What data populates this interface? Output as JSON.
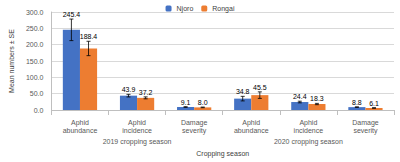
{
  "chart_data": {
    "type": "bar",
    "x_label": "Cropping season",
    "y_label": "Mean numbers ± SE",
    "categories": [
      "Aphid abundance",
      "Aphid incidence",
      "Damage severity",
      "Aphid abundance",
      "Aphid incidence",
      "Damage severity"
    ],
    "category_groups": [
      {
        "label": "2019 cropping season",
        "span": 3
      },
      {
        "label": "2020 cropping season",
        "span": 3
      }
    ],
    "series": [
      {
        "name": "Njoro",
        "color": "#4472c4",
        "values": [
          245.4,
          43.9,
          9.1,
          34.8,
          24.4,
          8.8
        ],
        "value_labels": [
          "245.4",
          "43.9",
          "9.1",
          "34.8",
          "24.4",
          "8.8"
        ],
        "errors": [
          33,
          4,
          1,
          7,
          2.5,
          1
        ]
      },
      {
        "name": "Rongai",
        "color": "#ed7d31",
        "values": [
          188.4,
          37.2,
          8.0,
          45.5,
          18.3,
          6.1
        ],
        "value_labels": [
          "188.4",
          "37.2",
          "8.0",
          "45.5",
          "18.3",
          "6.1"
        ],
        "errors": [
          22,
          3,
          1,
          10,
          2,
          1
        ]
      }
    ],
    "ylim": [
      0,
      300
    ],
    "yticks": [
      {
        "value": 0,
        "label": "0.0"
      },
      {
        "value": 50,
        "label": "50.0"
      },
      {
        "value": 100,
        "label": "100.0"
      },
      {
        "value": 150,
        "label": "150.0"
      },
      {
        "value": 200,
        "label": "200.0"
      },
      {
        "value": 250,
        "label": "250.0"
      },
      {
        "value": 300,
        "label": "300.0"
      }
    ],
    "grid": true,
    "legend": "top",
    "data_labels": true
  }
}
